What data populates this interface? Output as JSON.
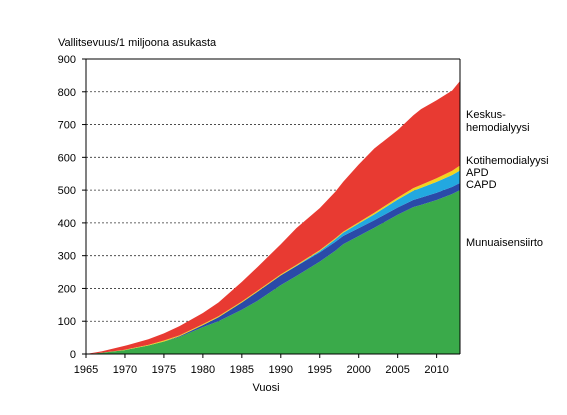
{
  "chart_data": {
    "type": "area",
    "stacked": true,
    "ylabel": "Vallitsevuus/1 miljoona asukasta",
    "xlabel": "Vuosi",
    "xlim": [
      1965,
      2013
    ],
    "ylim": [
      0,
      900
    ],
    "x_ticks": [
      "1965",
      "1970",
      "1975",
      "1980",
      "1985",
      "1990",
      "1995",
      "2000",
      "2005",
      "2010"
    ],
    "y_ticks": [
      "0",
      "100",
      "200",
      "300",
      "400",
      "500",
      "600",
      "700",
      "800",
      "900"
    ],
    "grid": "horizontal dashed",
    "legend_placement": "right",
    "x": [
      1965,
      1967,
      1970,
      1973,
      1975,
      1977,
      1980,
      1982,
      1985,
      1987,
      1990,
      1992,
      1995,
      1997,
      1998,
      2000,
      2002,
      2005,
      2007,
      2008,
      2010,
      2012,
      2013
    ],
    "series": [
      {
        "name": "Munuaisensiirto",
        "color": "#3aaa4a",
        "values": [
          0,
          4,
          12,
          26,
          38,
          52,
          82,
          100,
          135,
          162,
          210,
          238,
          282,
          315,
          335,
          360,
          385,
          425,
          448,
          455,
          470,
          488,
          500
        ]
      },
      {
        "name": "CAPD",
        "color": "#2a4aa8",
        "values": [
          0,
          0,
          0,
          0,
          0,
          2,
          6,
          12,
          22,
          28,
          30,
          30,
          28,
          27,
          25,
          24,
          23,
          22,
          22,
          22,
          22,
          22,
          22
        ]
      },
      {
        "name": "APD",
        "color": "#22a8e0",
        "values": [
          0,
          0,
          0,
          0,
          0,
          0,
          0,
          0,
          0,
          0,
          0,
          1,
          4,
          8,
          10,
          14,
          18,
          24,
          28,
          30,
          33,
          36,
          38
        ]
      },
      {
        "name": "Kotihemodialyysi",
        "color": "#f2d21e",
        "values": [
          0,
          0,
          1,
          2,
          3,
          3,
          3,
          3,
          3,
          3,
          3,
          3,
          3,
          3,
          3,
          4,
          5,
          6,
          8,
          9,
          11,
          13,
          15
        ]
      },
      {
        "name": "Keskus-\nhemodialyysi",
        "label_lines": [
          "Keskus-",
          "hemodialyysi"
        ],
        "color": "#e83a32",
        "values": [
          0,
          4,
          12,
          17,
          22,
          28,
          34,
          42,
          60,
          72,
          92,
          112,
          128,
          142,
          152,
          176,
          196,
          206,
          222,
          231,
          238,
          245,
          258
        ]
      }
    ]
  }
}
